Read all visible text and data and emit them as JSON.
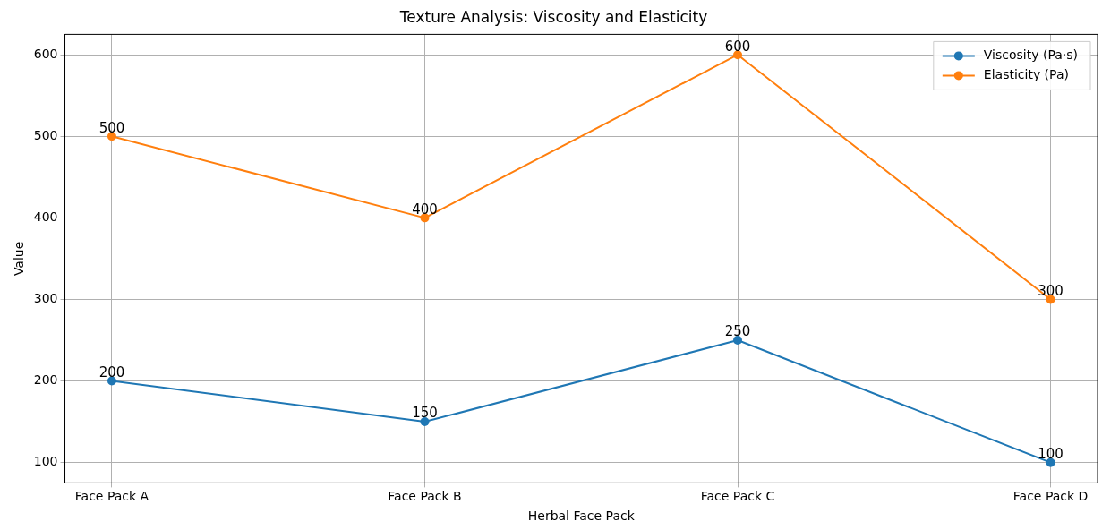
{
  "chart_data": {
    "type": "line",
    "title": "Texture Analysis: Viscosity and Elasticity",
    "xlabel": "Herbal Face Pack",
    "ylabel": "Value",
    "categories": [
      "Face Pack A",
      "Face Pack B",
      "Face Pack C",
      "Face Pack D"
    ],
    "series": [
      {
        "name": "Viscosity (Pa·s)",
        "color": "#1f77b4",
        "values": [
          200,
          150,
          250,
          100
        ]
      },
      {
        "name": "Elasticity (Pa)",
        "color": "#ff7f0e",
        "values": [
          500,
          400,
          600,
          300
        ]
      }
    ],
    "ylim": [
      75,
      625
    ],
    "yticks": [
      100,
      200,
      300,
      400,
      500,
      600
    ],
    "grid": true,
    "legend": "top right",
    "marker": "circle",
    "line_style": "solid",
    "data_labels": true
  }
}
